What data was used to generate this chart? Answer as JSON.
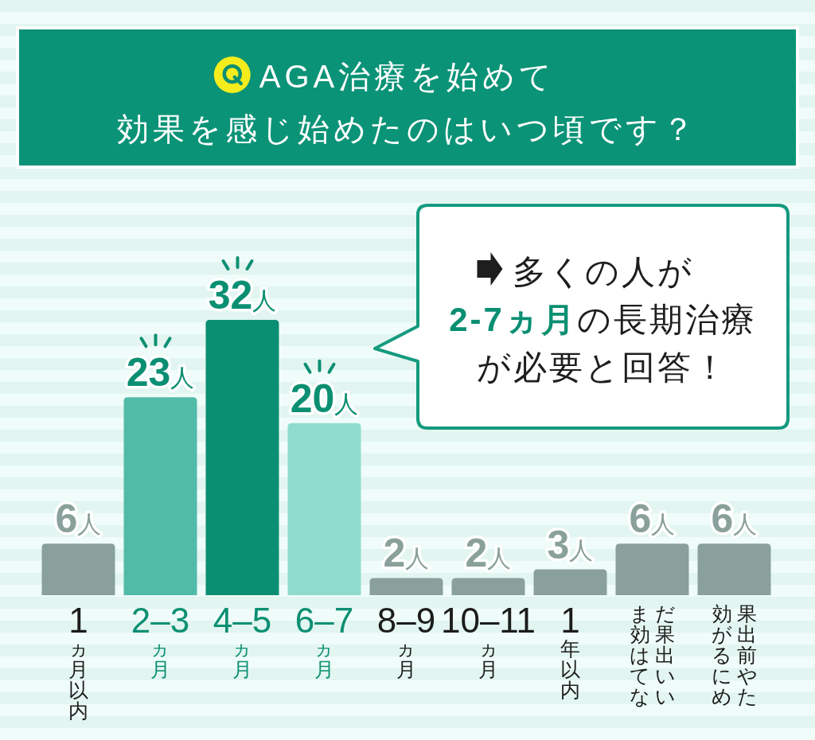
{
  "chart_data": {
    "type": "bar",
    "title": "AGA治療を始めて",
    "subtitle": "効果を感じ始めたのはいつ頃です？",
    "categories": [
      "1ヵ月以内",
      "2–3ヵ月",
      "4–5ヵ月",
      "6–7ヵ月",
      "8–9ヵ月",
      "10–11ヵ月",
      "1年以内",
      "まだ効果は出ていない",
      "効果が出る前にやめた"
    ],
    "values": [
      6,
      23,
      32,
      20,
      2,
      2,
      3,
      6,
      6
    ],
    "colors": [
      "#8aa09b",
      "#52bba7",
      "#0b8f72",
      "#8fdccf",
      "#8aa09b",
      "#8aa09b",
      "#8aa09b",
      "#8aa09b",
      "#8aa09b"
    ],
    "value_labels": [
      "6人",
      "23人",
      "32人",
      "20人",
      "2人",
      "2人",
      "3人",
      "6人",
      "6人"
    ],
    "annotations": [
      "多くの人が",
      "**2-7ヵ月**の長期治療",
      "が必要と回答！"
    ]
  }
}
